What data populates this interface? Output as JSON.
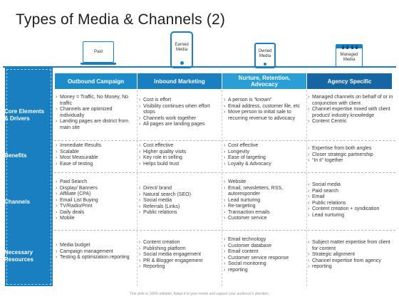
{
  "title": "Types of Media & Channels (2)",
  "media": [
    {
      "label_1": "Paid",
      "label_2": "Media",
      "icon": "laptop-icon"
    },
    {
      "label_1": "Earned",
      "label_2": "Media",
      "icon": "smartphone-icon"
    },
    {
      "label_1": "Owned",
      "label_2": "Media",
      "icon": "tablet-icon"
    },
    {
      "label_1": "Managed",
      "label_2": "Media",
      "icon": "calendar-icon"
    }
  ],
  "columns": [
    "Outbound Campaign",
    "Inbound Marketing",
    "Nurture, Retention, Advocacy",
    "Agency Specific"
  ],
  "rows": [
    {
      "label": "Core Elements & Drivers",
      "cells": [
        [
          "Money = Traffic, No Money, No traffic",
          "Channels are optimized individually",
          "Landing pages are district from main site"
        ],
        [
          "Cost is effort",
          "Visibility continues when effort stops",
          "Channels work together",
          "All pages are landing pages"
        ],
        [
          "A person is “known”",
          "Email address, customer file, etc",
          "Move person to initial sale to recurring revenue to advocacy"
        ],
        [
          "Managed channels on behalf of or in conjunction with client",
          "Channel expertise mixed with client product/ industry knowledge",
          "Content Centric"
        ]
      ]
    },
    {
      "label": "Benefits",
      "cells": [
        [
          "Immediate Results",
          "Scalable",
          "Most Measurable",
          "Ease of testing"
        ],
        [
          "Cost effective",
          "Higher quality visits",
          "Key role in selling",
          "Helps build trust"
        ],
        [
          "Cost effective",
          "Longevity",
          "Ease of targeting",
          "Loyalty & Advocacy"
        ],
        [
          "Expertise from both angles",
          "Closer strategic partnership",
          "“In it” together"
        ]
      ]
    },
    {
      "label": "Channels",
      "cells": [
        [
          "Paid Search",
          "Display/ Banners",
          "Affiliate (CPA)",
          "Email List Buying",
          "TV/Radio/Print",
          "Daily deals",
          "Mobile"
        ],
        [
          "Direct/ brand",
          "Natural search (SEO)",
          "Social media",
          "Referrals (Links)",
          "Public relations"
        ],
        [
          "Website",
          "Email, newsletters, RSS, autoresponder",
          "Lead nurturing",
          "Re-targeting",
          "Transaction emails",
          "Customer service"
        ],
        [
          "Social media",
          "Paid search",
          "Email",
          "Public relations",
          "Content creation + syndication",
          "Lead nurturing"
        ]
      ]
    },
    {
      "label": "Necessary Resources",
      "cells": [
        [
          "Media budget",
          "Campaign management",
          "Testing & optimization reporting"
        ],
        [
          "Content creation",
          "Publishing platform",
          "Social media engagement",
          "PR & Blogger engagement",
          "Reporting"
        ],
        [
          "Email technology",
          "Customer database",
          "Email content",
          "Customer service response",
          "Social monitoring",
          "reporting"
        ],
        [
          "Subject matter expertise from client for content",
          "Strategic alignment",
          "Channel expertise from agency",
          "reporting"
        ]
      ]
    }
  ],
  "footer": "This slide is 100% editable. Adapt it to your needs and capture your audience's attention."
}
